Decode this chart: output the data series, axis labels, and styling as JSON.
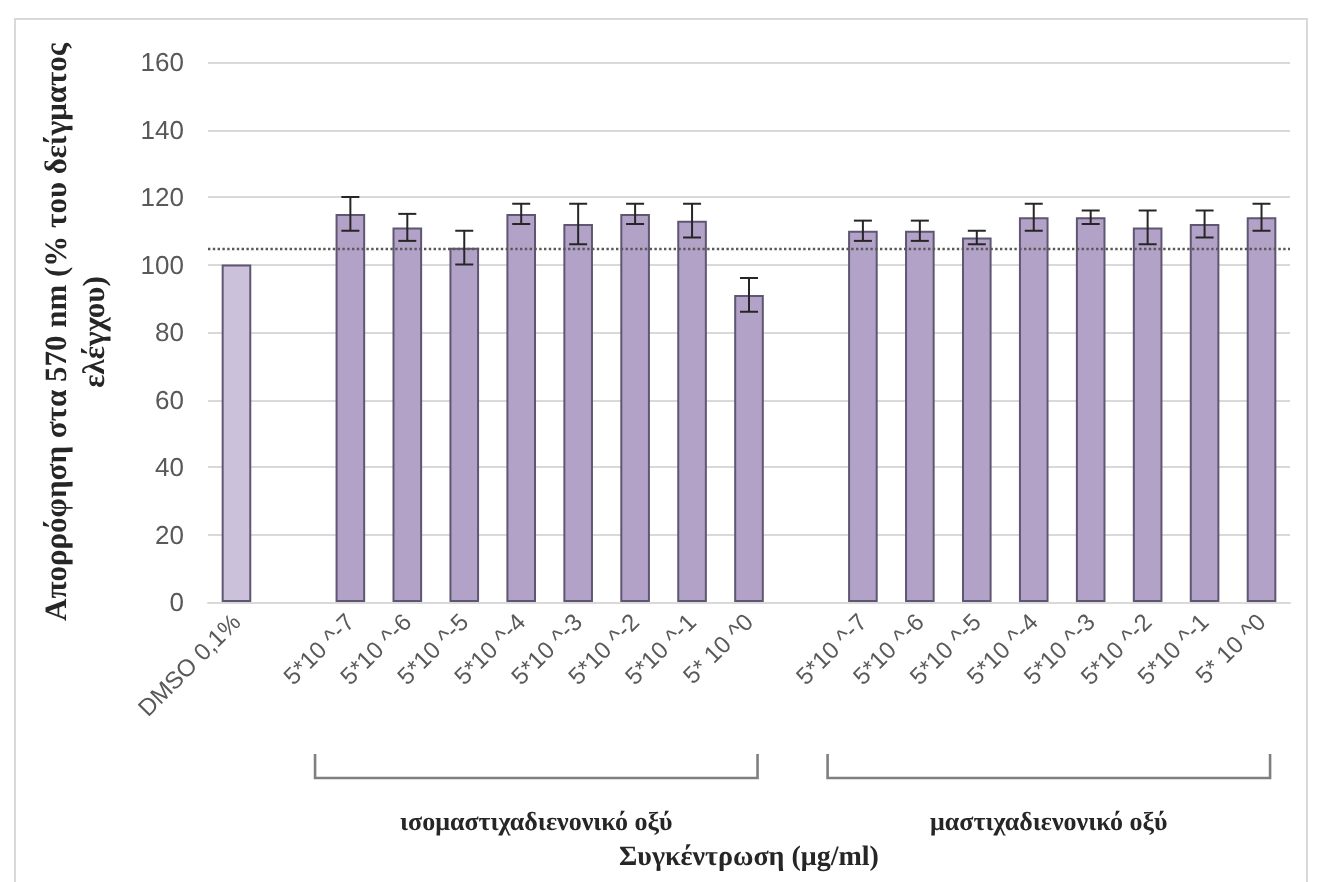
{
  "chart_data": {
    "type": "bar",
    "ylabel": "Απορρόφηση στα 570 nm (% του δείγματος ελέγχου)",
    "xlabel": "Συγκέντρωση (μg/ml)",
    "categories": [
      "DMSO 0,1%",
      null,
      "5*10 ^-7",
      "5*10 ^-6",
      "5*10 ^-5",
      "5*10 ^-4",
      "5*10 ^-3",
      "5*10 ^-2",
      "5*10 ^-1",
      "5* 10 ^0",
      null,
      "5*10 ^-7",
      "5*10 ^-6",
      "5*10 ^-5",
      "5*10 ^-4",
      "5*10 ^-3",
      "5*10 ^-2",
      "5*10 ^-1",
      "5* 10 ^0"
    ],
    "values": [
      100,
      null,
      115,
      111,
      105,
      115,
      112,
      115,
      113,
      91,
      null,
      110,
      110,
      108,
      114,
      114,
      111,
      112,
      114
    ],
    "errors": [
      null,
      null,
      5,
      4,
      5,
      3,
      6,
      3,
      5,
      5,
      null,
      3,
      3,
      2,
      4,
      2,
      5,
      4,
      4
    ],
    "colors": [
      "#ccc1da",
      null,
      "#b3a2c7",
      "#b3a2c7",
      "#b3a2c7",
      "#b3a2c7",
      "#b3a2c7",
      "#b3a2c7",
      "#b3a2c7",
      "#b3a2c7",
      null,
      "#b3a2c7",
      "#b3a2c7",
      "#b3a2c7",
      "#b3a2c7",
      "#b3a2c7",
      "#b3a2c7",
      "#b3a2c7",
      "#b3a2c7"
    ],
    "ylim": [
      0,
      160
    ],
    "yticks": [
      0,
      20,
      40,
      60,
      80,
      100,
      120,
      140,
      160
    ],
    "grid": "y",
    "ref_lines": [
      {
        "axis": "y",
        "value": 105,
        "color": "#595959",
        "line_style": "dotted"
      }
    ],
    "annotations": [
      "ισομαστιχαδιενονικό οξύ",
      "μαστιχαδιενονικό οξύ"
    ]
  }
}
